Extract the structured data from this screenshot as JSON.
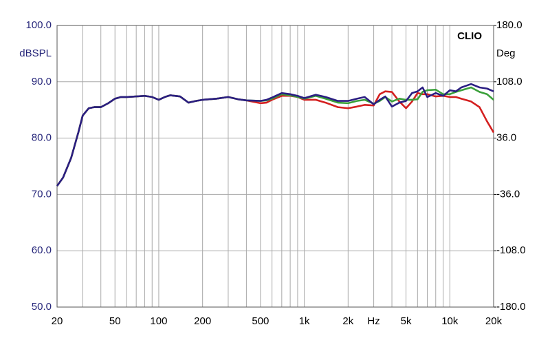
{
  "chart_data": {
    "type": "line",
    "log_x": true,
    "grid": true,
    "annotation": "CLIO",
    "ylabel": "dBSPL",
    "y2label": "Deg",
    "xlim": [
      20,
      20000
    ],
    "ylim": [
      50,
      100
    ],
    "y2lim": [
      -180,
      180
    ],
    "xticks": [
      20,
      50,
      100,
      200,
      500,
      {
        "value": 1000,
        "label": "1k"
      },
      {
        "value": 2000,
        "label": "2k"
      },
      {
        "value": 3000,
        "label": "Hz"
      },
      {
        "value": 5000,
        "label": "5k"
      },
      {
        "value": 10000,
        "label": "10k"
      },
      {
        "value": 20000,
        "label": "20k"
      }
    ],
    "xminor": [
      30,
      40,
      60,
      70,
      80,
      90,
      300,
      400,
      600,
      700,
      800,
      900,
      4000,
      6000,
      7000,
      8000,
      9000
    ],
    "yticks": [
      {
        "value": 50,
        "label": "50.0"
      },
      {
        "value": 60,
        "label": "60.0"
      },
      {
        "value": 70,
        "label": "70.0"
      },
      {
        "value": 80,
        "label": "80.0"
      },
      {
        "value": 90,
        "label": "90.0"
      },
      {
        "value": 100,
        "label": "100.0"
      }
    ],
    "y2ticks": [
      {
        "value": -180,
        "label": "-180.0"
      },
      {
        "value": -108,
        "label": "-108.0"
      },
      {
        "value": -36,
        "label": "-36.0"
      },
      {
        "value": 36,
        "label": "36.0"
      },
      {
        "value": 108,
        "label": "108.0"
      },
      {
        "value": 180,
        "label": "180.0"
      }
    ],
    "x": [
      20,
      22,
      25,
      28,
      30,
      33,
      36,
      40,
      45,
      50,
      55,
      60,
      70,
      80,
      90,
      100,
      110,
      120,
      140,
      160,
      180,
      200,
      250,
      300,
      350,
      400,
      500,
      550,
      600,
      700,
      800,
      900,
      1000,
      1200,
      1400,
      1700,
      2000,
      2300,
      2600,
      3000,
      3300,
      3600,
      4000,
      4500,
      5000,
      5500,
      6000,
      6500,
      7000,
      8000,
      9000,
      10000,
      11000,
      12000,
      14000,
      16000,
      18000,
      20000
    ],
    "series": [
      {
        "color": "#d42020",
        "values": [
          71.5,
          73,
          76.5,
          81,
          84,
          85.3,
          85.5,
          85.5,
          86.2,
          87,
          87.3,
          87.3,
          87.4,
          87.5,
          87.3,
          86.8,
          87.3,
          87.6,
          87.4,
          86.3,
          86.6,
          86.8,
          87,
          87.3,
          86.9,
          86.7,
          86.2,
          86.3,
          86.8,
          87.5,
          87.5,
          87.3,
          86.8,
          86.8,
          86.3,
          85.5,
          85.3,
          85.6,
          85.9,
          85.8,
          87.8,
          88.3,
          88.2,
          86.5,
          85.3,
          86.5,
          88,
          87.8,
          87.8,
          87.4,
          87.5,
          87.3,
          87.3,
          87,
          86.5,
          85.5,
          83,
          81
        ]
      },
      {
        "color": "#3aa03a",
        "values": [
          71.5,
          73,
          76.5,
          81,
          84,
          85.3,
          85.5,
          85.5,
          86.2,
          87,
          87.3,
          87.3,
          87.4,
          87.5,
          87.3,
          86.8,
          87.3,
          87.6,
          87.4,
          86.3,
          86.6,
          86.8,
          87,
          87.3,
          86.9,
          86.7,
          86.6,
          86.7,
          87,
          87.8,
          87.6,
          87.3,
          87,
          87.5,
          87,
          86.3,
          86.2,
          86.6,
          86.8,
          86.1,
          86.6,
          87.3,
          86.5,
          87,
          86.8,
          86.8,
          86.9,
          88.2,
          88.5,
          88.6,
          87.8,
          87.8,
          88.2,
          88.5,
          89,
          88.2,
          87.8,
          86.8
        ]
      },
      {
        "color": "#2b1e82",
        "values": [
          71.5,
          73,
          76.5,
          81,
          84,
          85.3,
          85.5,
          85.5,
          86.2,
          87,
          87.3,
          87.3,
          87.4,
          87.5,
          87.3,
          86.8,
          87.3,
          87.6,
          87.4,
          86.3,
          86.6,
          86.8,
          87,
          87.3,
          86.9,
          86.7,
          86.6,
          86.8,
          87.2,
          88,
          87.8,
          87.5,
          87.1,
          87.7,
          87.3,
          86.6,
          86.6,
          87,
          87.3,
          86,
          86.8,
          87.4,
          85.6,
          86.3,
          86.6,
          88,
          88.3,
          89,
          87.3,
          88,
          87.5,
          88.5,
          88.3,
          89,
          89.6,
          89,
          88.8,
          88.3
        ]
      }
    ]
  }
}
